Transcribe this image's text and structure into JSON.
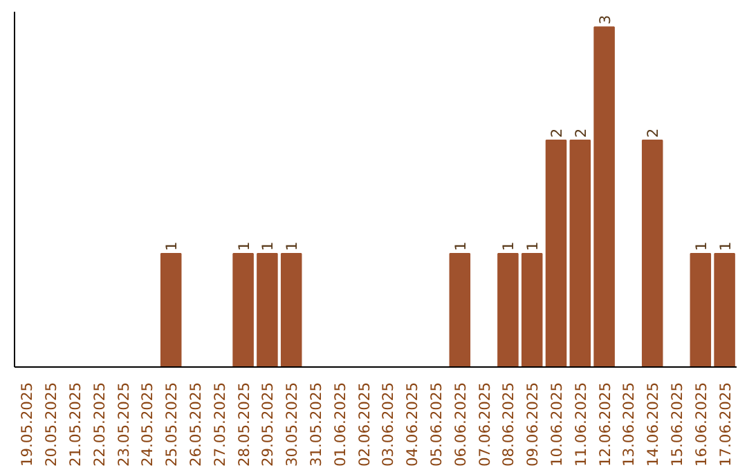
{
  "chart_data": {
    "type": "bar",
    "categories": [
      "19.05.2025",
      "20.05.2025",
      "21.05.2025",
      "22.05.2025",
      "23.05.2025",
      "24.05.2025",
      "25.05.2025",
      "26.05.2025",
      "27.05.2025",
      "28.05.2025",
      "29.05.2025",
      "30.05.2025",
      "31.05.2025",
      "01.06.2025",
      "02.06.2025",
      "03.06.2025",
      "04.06.2025",
      "05.06.2025",
      "06.06.2025",
      "07.06.2025",
      "08.06.2025",
      "09.06.2025",
      "10.06.2025",
      "11.06.2025",
      "12.06.2025",
      "13.06.2025",
      "14.06.2025",
      "15.06.2025",
      "16.06.2025",
      "17.06.2025"
    ],
    "values": [
      0,
      0,
      0,
      0,
      0,
      0,
      1,
      0,
      0,
      1,
      1,
      1,
      0,
      0,
      0,
      0,
      0,
      0,
      1,
      0,
      1,
      1,
      2,
      2,
      3,
      0,
      2,
      0,
      1,
      1
    ],
    "value_labels": [
      null,
      null,
      null,
      null,
      null,
      null,
      "1",
      null,
      null,
      "1",
      "1",
      "1",
      null,
      null,
      null,
      null,
      null,
      null,
      "1",
      null,
      "1",
      "1",
      "2",
      "2",
      "3",
      null,
      "2",
      null,
      "1",
      "1"
    ],
    "color": "#a0522d",
    "grid": false,
    "legend": false
  }
}
